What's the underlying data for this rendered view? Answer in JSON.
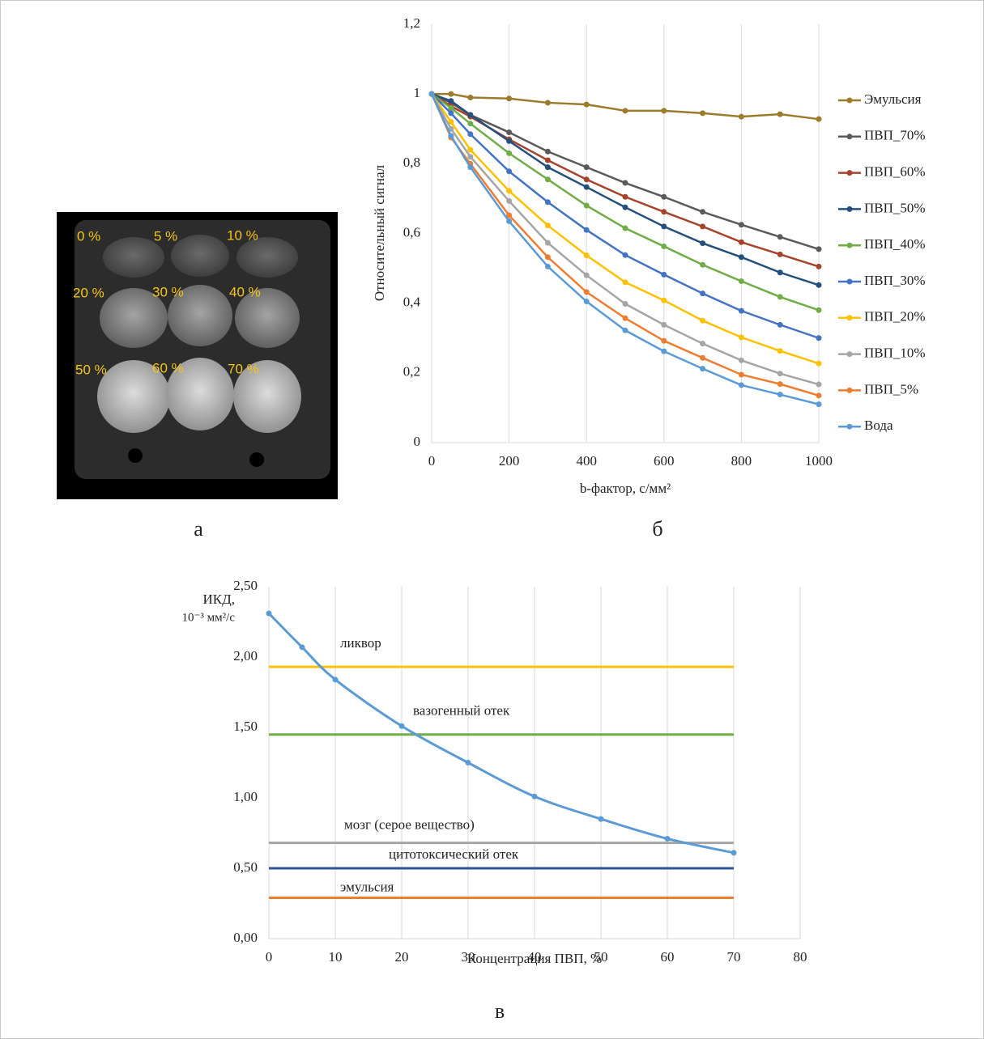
{
  "image": {
    "labels": [
      "0 %",
      "5 %",
      "10 %",
      "20 %",
      "30 %",
      "40 %",
      "50 %",
      "60 %",
      "70 %"
    ],
    "caption": "а"
  },
  "chart_data": [
    {
      "type": "line",
      "caption": "б",
      "ylabel": "Относительный сигнал",
      "xlabel": "b-фактор, с/мм²",
      "x": [
        0,
        50,
        100,
        200,
        300,
        400,
        500,
        600,
        700,
        800,
        900,
        1000
      ],
      "xlim": [
        0,
        1000
      ],
      "xticks": [
        0,
        200,
        400,
        600,
        800,
        1000
      ],
      "ylim": [
        0,
        1.2
      ],
      "yticks": [
        0,
        {
          "value": 0.2,
          "label": "0,2"
        },
        {
          "value": 0.4,
          "label": "0,4"
        },
        {
          "value": 0.6,
          "label": "0,6"
        },
        {
          "value": 0.8,
          "label": "0,8"
        },
        1,
        {
          "value": 1.2,
          "label": "1,2"
        }
      ],
      "grid": "x",
      "legend": "right",
      "markers": true,
      "smooth": false,
      "series": [
        {
          "name": "Эмульсия",
          "color": "#9c7b2a",
          "values": [
            1,
            1.0,
            0.99,
            0.987,
            0.975,
            0.97,
            0.952,
            0.952,
            0.945,
            0.935,
            0.942,
            0.928
          ]
        },
        {
          "name": "ПВП_70%",
          "color": "#5a5a5a",
          "values": [
            1,
            0.975,
            0.94,
            0.89,
            0.835,
            0.79,
            0.745,
            0.705,
            0.662,
            0.625,
            0.59,
            0.555
          ]
        },
        {
          "name": "ПВП_60%",
          "color": "#a5442a",
          "values": [
            1,
            0.965,
            0.935,
            0.87,
            0.81,
            0.755,
            0.705,
            0.662,
            0.62,
            0.575,
            0.54,
            0.505
          ]
        },
        {
          "name": "ПВП_50%",
          "color": "#254f7d",
          "values": [
            1,
            0.98,
            0.94,
            0.865,
            0.79,
            0.733,
            0.675,
            0.62,
            0.572,
            0.532,
            0.488,
            0.452
          ]
        },
        {
          "name": "ПВП_40%",
          "color": "#70ad47",
          "values": [
            1,
            0.96,
            0.915,
            0.83,
            0.755,
            0.68,
            0.615,
            0.563,
            0.51,
            0.463,
            0.418,
            0.38
          ]
        },
        {
          "name": "ПВП_30%",
          "color": "#4472c4",
          "values": [
            1,
            0.945,
            0.885,
            0.778,
            0.69,
            0.61,
            0.538,
            0.482,
            0.428,
            0.378,
            0.338,
            0.3
          ]
        },
        {
          "name": "ПВП_20%",
          "color": "#ffc000",
          "values": [
            1,
            0.92,
            0.84,
            0.722,
            0.623,
            0.537,
            0.46,
            0.408,
            0.35,
            0.302,
            0.263,
            0.227
          ]
        },
        {
          "name": "ПВП_10%",
          "color": "#a5a5a5",
          "values": [
            1,
            0.9,
            0.82,
            0.693,
            0.573,
            0.48,
            0.398,
            0.338,
            0.284,
            0.236,
            0.198,
            0.167
          ]
        },
        {
          "name": "ПВП_5%",
          "color": "#ed7d31",
          "values": [
            1,
            0.875,
            0.8,
            0.652,
            0.532,
            0.432,
            0.357,
            0.292,
            0.243,
            0.195,
            0.168,
            0.135
          ]
        },
        {
          "name": "Вода",
          "color": "#5b9bd5",
          "values": [
            1,
            0.88,
            0.79,
            0.635,
            0.505,
            0.405,
            0.322,
            0.262,
            0.212,
            0.165,
            0.138,
            0.11
          ]
        }
      ]
    },
    {
      "type": "line",
      "caption": "в",
      "ylabel": [
        "ИКД,",
        "10⁻³ мм²/с"
      ],
      "xlabel": "Концентрация ПВП, %",
      "x": [
        0,
        5,
        10,
        20,
        30,
        40,
        50,
        60,
        70
      ],
      "xlim": [
        0,
        80
      ],
      "xticks": [
        0,
        10,
        20,
        30,
        40,
        50,
        60,
        70,
        80
      ],
      "ylim": [
        0,
        2.5
      ],
      "yticks": [
        {
          "value": 0,
          "label": "0,00"
        },
        {
          "value": 0.5,
          "label": "0,50"
        },
        {
          "value": 1,
          "label": "1,00"
        },
        {
          "value": 1.5,
          "label": "1,50"
        },
        {
          "value": 2,
          "label": "2,00"
        },
        {
          "value": 2.5,
          "label": "2,50"
        }
      ],
      "grid": "x",
      "markers": true,
      "smooth": true,
      "series": [
        {
          "color": "#5b9bd5",
          "values": [
            2.31,
            2.07,
            1.84,
            1.51,
            1.25,
            1.01,
            0.85,
            0.71,
            0.61
          ]
        }
      ],
      "reference_lines": [
        {
          "label": "ликвор",
          "value": 1.93,
          "color": "#ffc000"
        },
        {
          "label": "вазогенный отек",
          "value": 1.45,
          "color": "#70ad47"
        },
        {
          "label": "мозг (серое вещество)",
          "value": 0.68,
          "color": "#a5a5a5"
        },
        {
          "label": "цитотоксический отек",
          "value": 0.5,
          "color": "#2f5597"
        },
        {
          "label": "эмульсия",
          "value": 0.29,
          "color": "#ed7d31"
        }
      ]
    }
  ]
}
